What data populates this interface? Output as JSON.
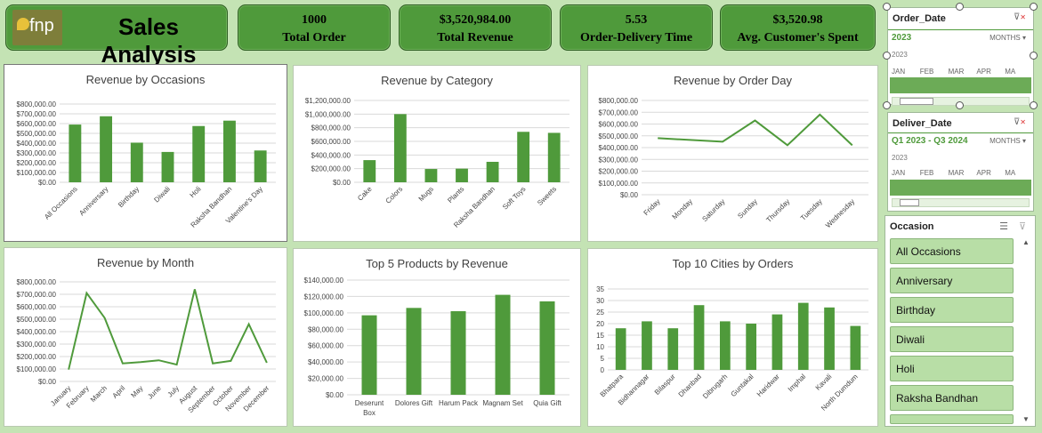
{
  "header": {
    "logo_text": "fnp",
    "title": "Sales Analysis"
  },
  "kpis": [
    {
      "value": "1000",
      "label": "Total Order"
    },
    {
      "value": "$3,520,984.00",
      "label": "Total Revenue"
    },
    {
      "value": "5.53",
      "label": "Order-Delivery Time"
    },
    {
      "value": "$3,520.98",
      "label": "Avg. Customer's Spent"
    }
  ],
  "charts": {
    "occasions": {
      "title": "Revenue by Occasions",
      "type": "bar",
      "categories": [
        "All Occasions",
        "Anniversary",
        "Birthday",
        "Diwali",
        "Holi",
        "Raksha Bandhan",
        "Valentine's Day"
      ],
      "values": [
        590000,
        675000,
        405000,
        310000,
        575000,
        630000,
        325000
      ],
      "ylim": [
        0,
        800000
      ],
      "yticks": [
        "$0.00",
        "$100,000.00",
        "$200,000.00",
        "$300,000.00",
        "$400,000.00",
        "$500,000.00",
        "$600,000.00",
        "$700,000.00",
        "$800,000.00"
      ]
    },
    "category": {
      "title": "Revenue by Category",
      "type": "bar",
      "categories": [
        "Cake",
        "Colors",
        "Mugs",
        "Plants",
        "Raksha Bandhan",
        "Soft Toys",
        "Sweets"
      ],
      "values": [
        325000,
        1000000,
        195000,
        200000,
        300000,
        740000,
        725000
      ],
      "ylim": [
        0,
        1200000
      ],
      "yticks": [
        "$0.00",
        "$200,000.00",
        "$400,000.00",
        "$600,000.00",
        "$800,000.00",
        "$1,000,000.00",
        "$1,200,000.00"
      ]
    },
    "orderday": {
      "title": "Revenue by Order Day",
      "type": "line",
      "categories": [
        "Friday",
        "Monday",
        "Saturday",
        "Sunday",
        "Thursday",
        "Tuesday",
        "Wednesday"
      ],
      "values": [
        480000,
        465000,
        450000,
        630000,
        420000,
        680000,
        420000
      ],
      "ylim": [
        0,
        800000
      ],
      "yticks": [
        "$0.00",
        "$100,000.00",
        "$200,000.00",
        "$300,000.00",
        "$400,000.00",
        "$500,000.00",
        "$600,000.00",
        "$700,000.00",
        "$800,000.00"
      ]
    },
    "month": {
      "title": "Revenue by Month",
      "type": "line",
      "categories": [
        "January",
        "February",
        "March",
        "April",
        "May",
        "June",
        "July",
        "August",
        "September",
        "October",
        "November",
        "December"
      ],
      "values": [
        95000,
        710000,
        510000,
        145000,
        155000,
        170000,
        135000,
        740000,
        145000,
        165000,
        460000,
        150000
      ],
      "ylim": [
        0,
        800000
      ],
      "yticks": [
        "$0.00",
        "$100,000.00",
        "$200,000.00",
        "$300,000.00",
        "$400,000.00",
        "$500,000.00",
        "$600,000.00",
        "$700,000.00",
        "$800,000.00"
      ]
    },
    "products": {
      "title": "Top 5 Products by Revenue",
      "type": "bar",
      "categories": [
        "Deserunt Box",
        "Dolores Gift",
        "Harum Pack",
        "Magnam Set",
        "Quia Gift"
      ],
      "values": [
        97000,
        106000,
        102000,
        122000,
        114000
      ],
      "ylim": [
        0,
        140000
      ],
      "yticks": [
        "$0.00",
        "$20,000.00",
        "$40,000.00",
        "$60,000.00",
        "$80,000.00",
        "$100,000.00",
        "$120,000.00",
        "$140,000.00"
      ]
    },
    "cities": {
      "title": "Top 10 Cities by Orders",
      "type": "bar",
      "categories": [
        "Bhatpara",
        "Bidhannagar",
        "Bilaspur",
        "Dhanbad",
        "Dibrugarh",
        "Guntakal",
        "Haridwar",
        "Imphal",
        "Kavali",
        "North Dumdum"
      ],
      "values": [
        18,
        21,
        18,
        28,
        21,
        20,
        24,
        29,
        27,
        19
      ],
      "ylim": [
        0,
        35
      ],
      "yticks": [
        "0",
        "5",
        "10",
        "15",
        "20",
        "25",
        "30",
        "35"
      ]
    }
  },
  "slicers": {
    "order_date": {
      "title": "Order_Date",
      "selection": "2023",
      "level": "MONTHS",
      "year": "2023",
      "months": [
        "JAN",
        "FEB",
        "MAR",
        "APR",
        "MA"
      ]
    },
    "deliver_date": {
      "title": "Deliver_Date",
      "selection": "Q1 2023 - Q3 2024",
      "level": "MONTHS",
      "year": "2023",
      "months": [
        "JAN",
        "FEB",
        "MAR",
        "APR",
        "MA"
      ]
    },
    "occasion": {
      "title": "Occasion",
      "items": [
        "All Occasions",
        "Anniversary",
        "Birthday",
        "Diwali",
        "Holi",
        "Raksha Bandhan"
      ]
    }
  },
  "colors": {
    "bar": "#4f9a3b",
    "background": "#c4e3b4",
    "kpi": "#4f9a3b"
  }
}
